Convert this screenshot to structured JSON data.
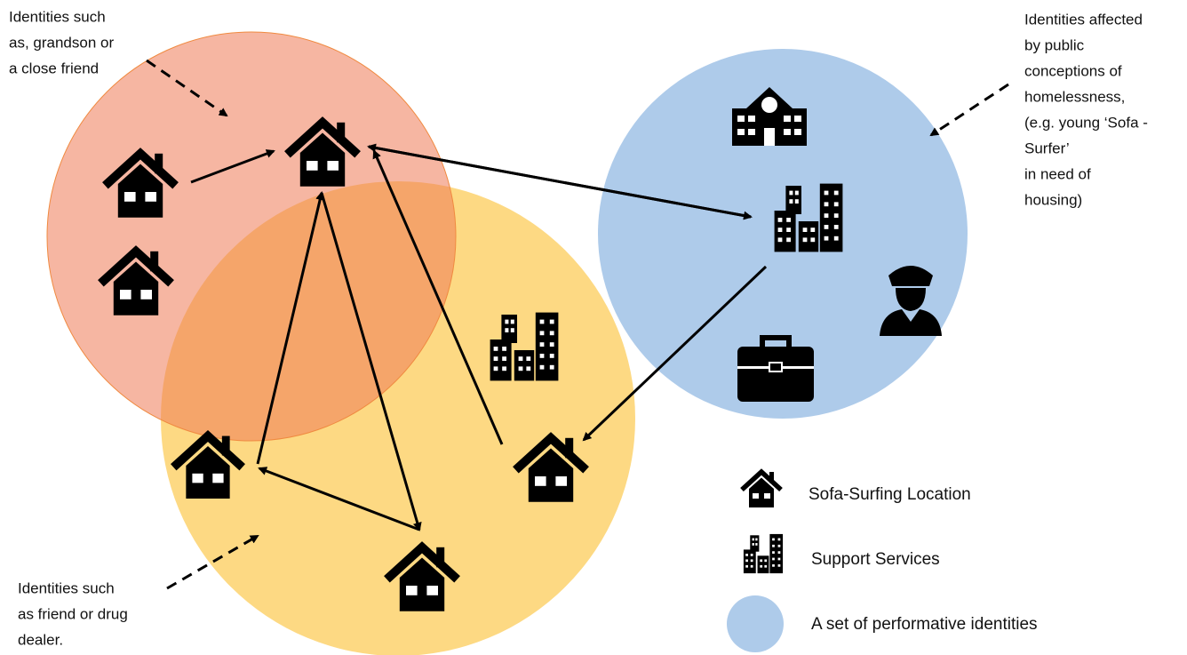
{
  "annotations": {
    "top_left": [
      "Identities such",
      "as, grandson or",
      "a close friend"
    ],
    "top_right": [
      "Identities affected",
      "by public",
      "conceptions of",
      "homelessness,",
      "(e.g. young ‘Sofa -",
      "Surfer’",
      "in need of",
      "housing)"
    ],
    "bottom_left": [
      "Identities such",
      "as friend or drug",
      "dealer."
    ]
  },
  "legend": [
    {
      "label": "Sofa-Surfing Location"
    },
    {
      "label": "Support Services"
    },
    {
      "label": "A set of performative identities"
    }
  ]
}
